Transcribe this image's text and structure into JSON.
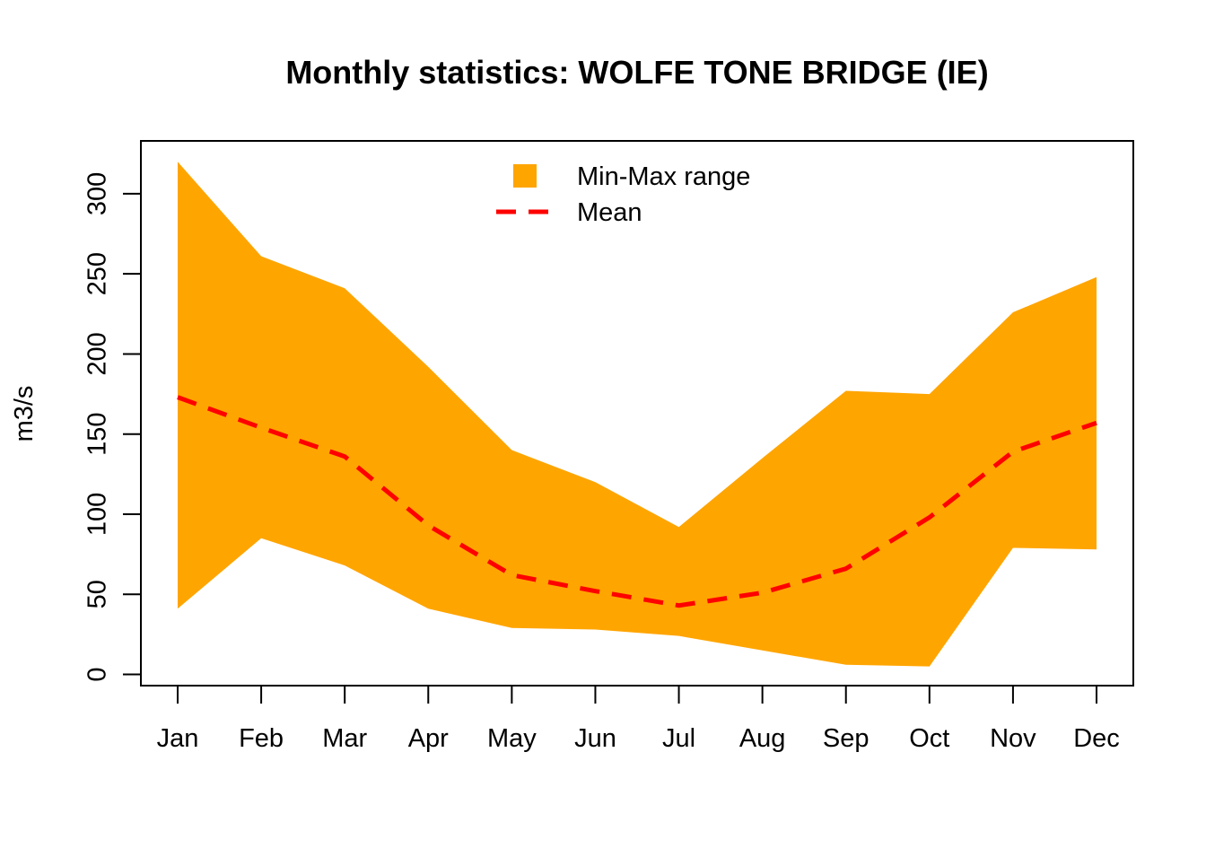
{
  "chart_data": {
    "type": "area",
    "title": "Monthly statistics: WOLFE TONE BRIDGE (IE)",
    "xlabel": "",
    "ylabel": "m3/s",
    "categories": [
      "Jan",
      "Feb",
      "Mar",
      "Apr",
      "May",
      "Jun",
      "Jul",
      "Aug",
      "Sep",
      "Oct",
      "Nov",
      "Dec"
    ],
    "ylim": [
      -7,
      333
    ],
    "yticks": [
      "0",
      "50",
      "100",
      "150",
      "200",
      "250",
      "300"
    ],
    "grid": false,
    "legend_position": "top-center",
    "series": [
      {
        "name": "Min-Max range",
        "type": "band",
        "color": "#FFA500",
        "min": [
          41,
          85,
          68,
          41,
          29,
          28,
          24,
          15,
          6,
          5,
          79,
          78
        ],
        "max": [
          320,
          261,
          241,
          192,
          140,
          120,
          92,
          135,
          177,
          175,
          226,
          248
        ]
      },
      {
        "name": "Mean",
        "type": "line",
        "style": "dashed",
        "color": "#FF0000",
        "values": [
          173,
          154,
          136,
          93,
          62,
          52,
          43,
          51,
          66,
          98,
          139,
          157
        ]
      }
    ]
  }
}
